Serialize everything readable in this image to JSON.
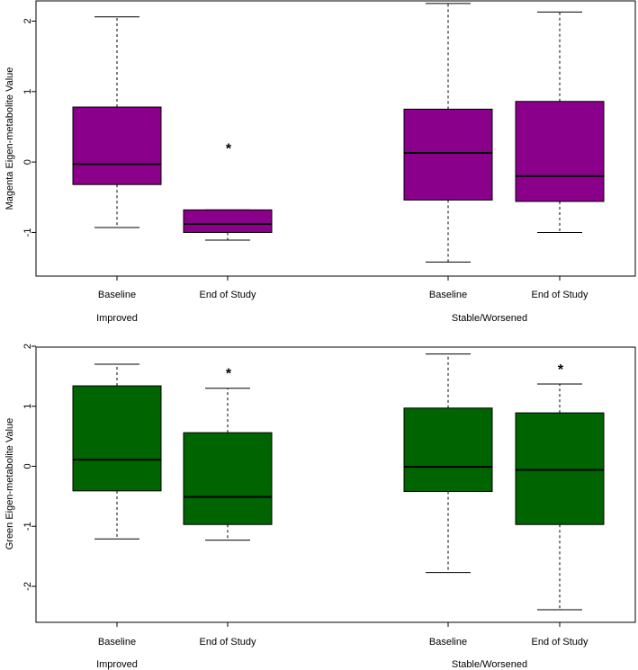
{
  "chart_data": [
    {
      "type": "box",
      "ylabel": "Magenta Eigen-metabolite Value",
      "fill_color": "#8B008B",
      "yticks": [
        -1,
        0,
        1,
        2
      ],
      "ylim": [
        -1.62,
        2.3
      ],
      "categories": [
        "Baseline",
        "End of Study",
        "Baseline",
        "End of Study"
      ],
      "groups": [
        {
          "label": "Improved",
          "categories": [
            0,
            1
          ]
        },
        {
          "label": "Stable/Worsened",
          "categories": [
            2,
            3
          ]
        }
      ],
      "boxes": [
        {
          "whisker_low": -0.93,
          "q1": -0.32,
          "median": -0.03,
          "q3": 0.78,
          "whisker_high": 2.06,
          "marker": ""
        },
        {
          "whisker_low": -1.11,
          "q1": -1.0,
          "median": -0.88,
          "q3": -0.68,
          "whisker_high": -0.68,
          "marker": "*"
        },
        {
          "whisker_low": -1.42,
          "q1": -0.54,
          "median": 0.13,
          "q3": 0.75,
          "whisker_high": 2.25,
          "marker": ""
        },
        {
          "whisker_low": -1.0,
          "q1": -0.56,
          "median": -0.2,
          "q3": 0.86,
          "whisker_high": 2.13,
          "marker": ""
        }
      ]
    },
    {
      "type": "box",
      "ylabel": "Green Eigen-metabolite Value",
      "fill_color": "#006400",
      "yticks": [
        -2,
        -1,
        0,
        1,
        2
      ],
      "ylim": [
        -2.6,
        2.0
      ],
      "categories": [
        "Baseline",
        "End of Study",
        "Baseline",
        "End of Study"
      ],
      "groups": [
        {
          "label": "Improved",
          "categories": [
            0,
            1
          ]
        },
        {
          "label": "Stable/Worsened",
          "categories": [
            2,
            3
          ]
        }
      ],
      "boxes": [
        {
          "whisker_low": -1.21,
          "q1": -0.41,
          "median": 0.11,
          "q3": 1.34,
          "whisker_high": 1.7,
          "marker": ""
        },
        {
          "whisker_low": -1.23,
          "q1": -0.97,
          "median": -0.51,
          "q3": 0.56,
          "whisker_high": 1.3,
          "marker": "*"
        },
        {
          "whisker_low": -1.77,
          "q1": -0.42,
          "median": -0.01,
          "q3": 0.97,
          "whisker_high": 1.87,
          "marker": ""
        },
        {
          "whisker_low": -2.39,
          "q1": -0.97,
          "median": -0.06,
          "q3": 0.89,
          "whisker_high": 1.37,
          "marker": "*"
        }
      ]
    }
  ]
}
